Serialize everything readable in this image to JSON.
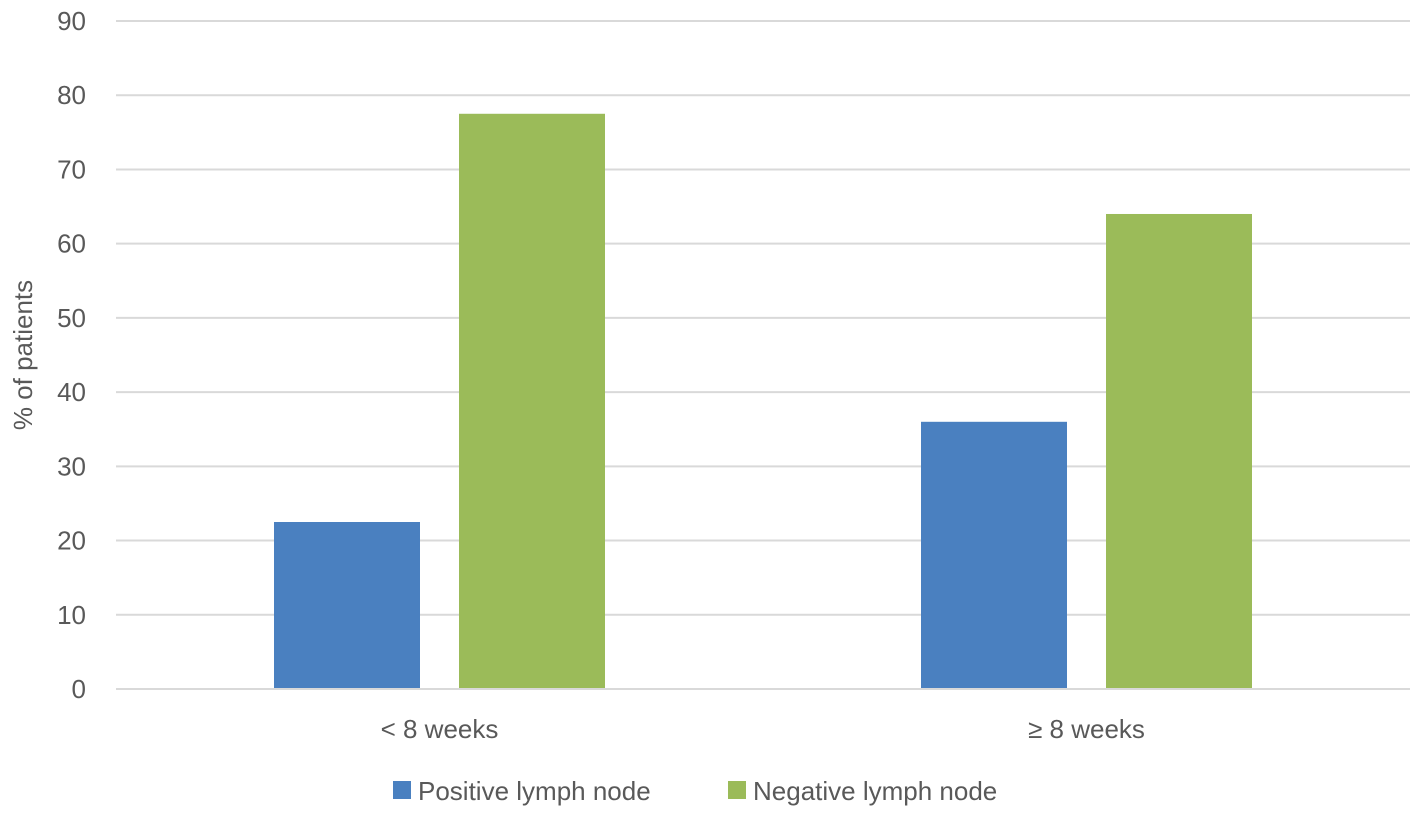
{
  "chart_data": {
    "type": "bar",
    "title": "",
    "xlabel": "",
    "ylabel": "% of patients",
    "categories": [
      "< 8 weeks",
      "≥ 8 weeks"
    ],
    "series": [
      {
        "name": "Positive lymph node",
        "values": [
          22.5,
          36
        ],
        "color": "#4a80c0"
      },
      {
        "name": "Negative lymph node",
        "values": [
          77.5,
          64
        ],
        "color": "#9bbb59"
      }
    ],
    "ylim": [
      0,
      90
    ],
    "yticks": [
      0,
      10,
      20,
      30,
      40,
      50,
      60,
      70,
      80,
      90
    ],
    "grid": true,
    "gridColor": "#d9d9d9",
    "legend": "bottom"
  }
}
